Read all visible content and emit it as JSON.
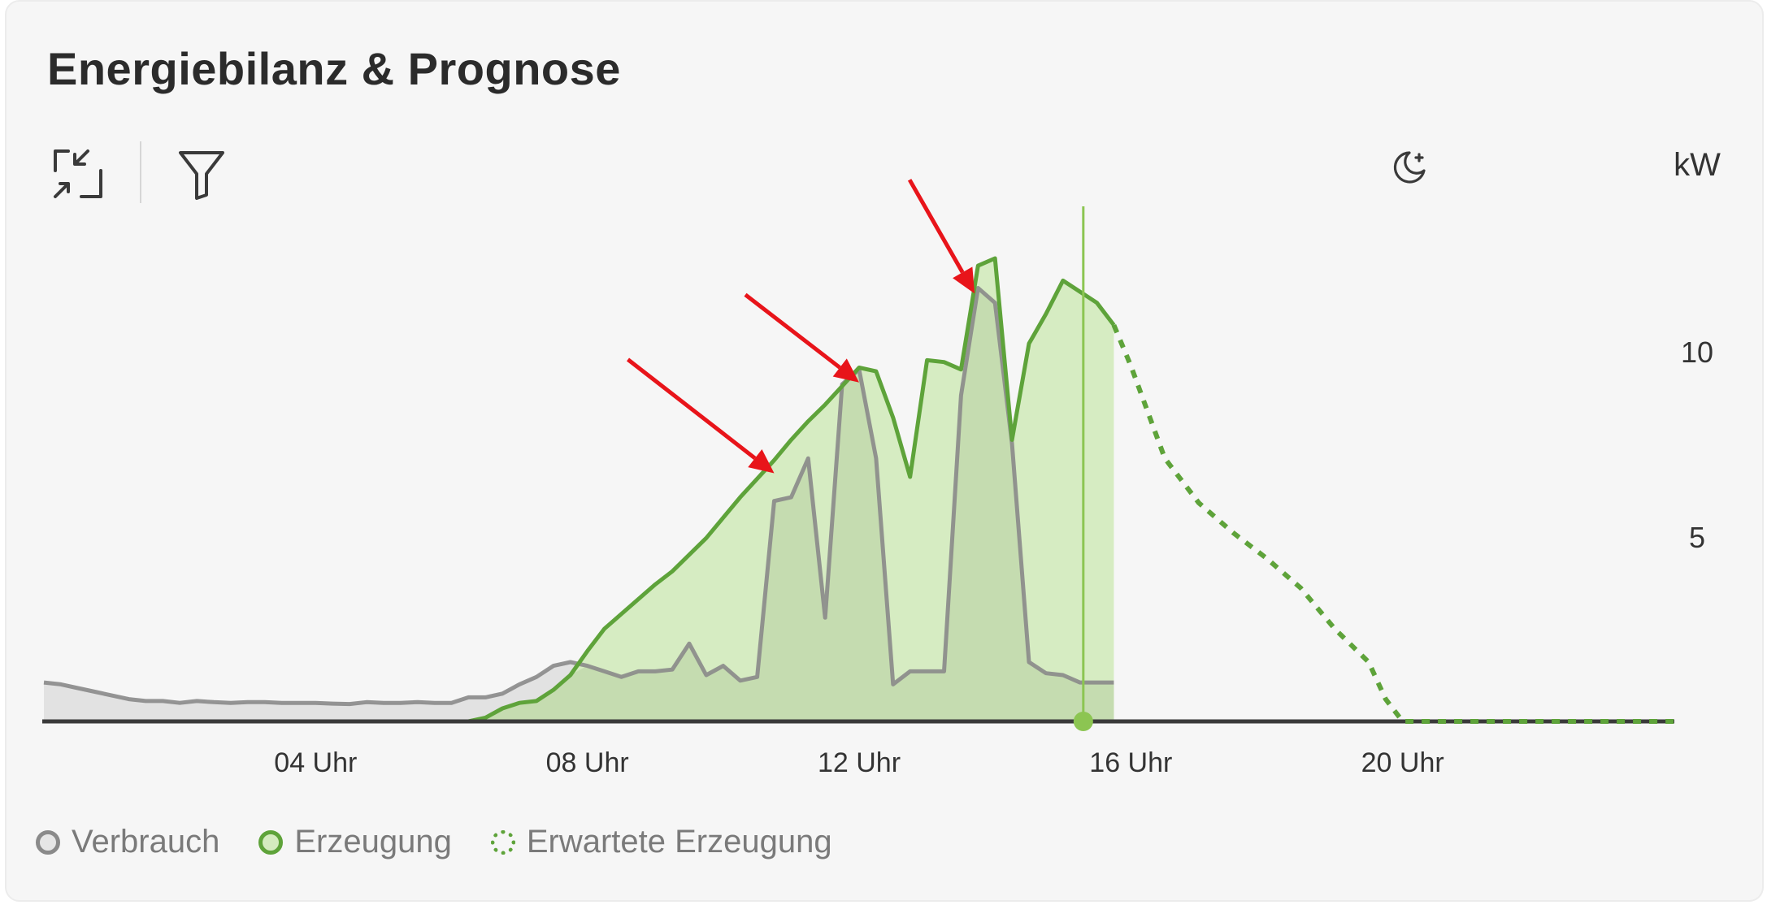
{
  "header": {
    "title": "Energiebilanz & Prognose"
  },
  "toolbar": {
    "collapse_icon": "collapse-arrows-icon",
    "filter_icon": "filter-icon",
    "night_icon": "moon-stars-icon"
  },
  "colors": {
    "verbrauch_line": "#8a8a8a",
    "verbrauch_fill": "#e2e2e2",
    "erzeugung_line": "#5ea33a",
    "erzeugung_fill": "#d4ebbf",
    "overlap_fill": "#c5dcb0",
    "now_marker": "#8cc552",
    "baseline": "#3a3a3a",
    "annotation_arrow": "#e8141a"
  },
  "chart_data": {
    "type": "area",
    "unit_label": "kW",
    "ylim": [
      0,
      14
    ],
    "yticks": [
      5,
      10
    ],
    "xlim": [
      0,
      24
    ],
    "xticks": [
      4,
      8,
      12,
      16,
      20
    ],
    "xtick_labels": [
      "04 Uhr",
      "08 Uhr",
      "12 Uhr",
      "16 Uhr",
      "20 Uhr"
    ],
    "now_hour": 15.3,
    "series": [
      {
        "name": "Verbrauch",
        "style": "filled-line",
        "points": [
          [
            0.0,
            1.05
          ],
          [
            0.25,
            1.0
          ],
          [
            0.5,
            0.9
          ],
          [
            0.75,
            0.8
          ],
          [
            1.0,
            0.7
          ],
          [
            1.25,
            0.6
          ],
          [
            1.5,
            0.55
          ],
          [
            1.75,
            0.55
          ],
          [
            2.0,
            0.5
          ],
          [
            2.25,
            0.55
          ],
          [
            2.5,
            0.52
          ],
          [
            2.75,
            0.5
          ],
          [
            3.0,
            0.52
          ],
          [
            3.25,
            0.52
          ],
          [
            3.5,
            0.5
          ],
          [
            3.75,
            0.5
          ],
          [
            4.0,
            0.5
          ],
          [
            4.25,
            0.48
          ],
          [
            4.5,
            0.47
          ],
          [
            4.75,
            0.52
          ],
          [
            5.0,
            0.5
          ],
          [
            5.25,
            0.5
          ],
          [
            5.5,
            0.52
          ],
          [
            5.75,
            0.5
          ],
          [
            6.0,
            0.5
          ],
          [
            6.25,
            0.65
          ],
          [
            6.5,
            0.65
          ],
          [
            6.75,
            0.75
          ],
          [
            7.0,
            1.0
          ],
          [
            7.25,
            1.2
          ],
          [
            7.5,
            1.5
          ],
          [
            7.75,
            1.6
          ],
          [
            8.0,
            1.5
          ],
          [
            8.25,
            1.35
          ],
          [
            8.5,
            1.2
          ],
          [
            8.75,
            1.35
          ],
          [
            9.0,
            1.35
          ],
          [
            9.25,
            1.4
          ],
          [
            9.5,
            2.1
          ],
          [
            9.75,
            1.25
          ],
          [
            10.0,
            1.5
          ],
          [
            10.25,
            1.1
          ],
          [
            10.5,
            1.2
          ],
          [
            10.75,
            5.95
          ],
          [
            11.0,
            6.05
          ],
          [
            11.25,
            7.1
          ],
          [
            11.5,
            2.8
          ],
          [
            11.75,
            9.1
          ],
          [
            12.0,
            9.5
          ],
          [
            12.25,
            7.1
          ],
          [
            12.5,
            1.0
          ],
          [
            12.75,
            1.35
          ],
          [
            13.0,
            1.35
          ],
          [
            13.25,
            1.35
          ],
          [
            13.5,
            8.8
          ],
          [
            13.75,
            11.7
          ],
          [
            14.0,
            11.3
          ],
          [
            14.25,
            7.5
          ],
          [
            14.5,
            1.6
          ],
          [
            14.75,
            1.3
          ],
          [
            15.0,
            1.25
          ],
          [
            15.25,
            1.05
          ],
          [
            15.5,
            1.05
          ],
          [
            15.75,
            1.05
          ]
        ]
      },
      {
        "name": "Erzeugung",
        "style": "filled-line",
        "points": [
          [
            0.0,
            0.0
          ],
          [
            6.25,
            0.0
          ],
          [
            6.5,
            0.1
          ],
          [
            6.75,
            0.35
          ],
          [
            7.0,
            0.5
          ],
          [
            7.25,
            0.55
          ],
          [
            7.5,
            0.85
          ],
          [
            7.75,
            1.25
          ],
          [
            8.0,
            1.9
          ],
          [
            8.25,
            2.5
          ],
          [
            8.5,
            2.9
          ],
          [
            8.75,
            3.3
          ],
          [
            9.0,
            3.7
          ],
          [
            9.25,
            4.05
          ],
          [
            9.5,
            4.5
          ],
          [
            9.75,
            4.95
          ],
          [
            10.0,
            5.5
          ],
          [
            10.25,
            6.05
          ],
          [
            10.5,
            6.55
          ],
          [
            10.75,
            7.05
          ],
          [
            11.0,
            7.6
          ],
          [
            11.25,
            8.1
          ],
          [
            11.5,
            8.55
          ],
          [
            11.75,
            9.05
          ],
          [
            12.0,
            9.55
          ],
          [
            12.25,
            9.45
          ],
          [
            12.5,
            8.2
          ],
          [
            12.75,
            6.6
          ],
          [
            13.0,
            9.75
          ],
          [
            13.25,
            9.7
          ],
          [
            13.5,
            9.5
          ],
          [
            13.75,
            12.3
          ],
          [
            14.0,
            12.5
          ],
          [
            14.25,
            7.6
          ],
          [
            14.5,
            10.2
          ],
          [
            14.75,
            11.0
          ],
          [
            15.0,
            11.9
          ],
          [
            15.25,
            11.6
          ],
          [
            15.5,
            11.3
          ],
          [
            15.75,
            10.7
          ]
        ]
      },
      {
        "name": "Erwartete Erzeugung",
        "style": "dotted-line",
        "points": [
          [
            15.75,
            10.7
          ],
          [
            16.0,
            9.6
          ],
          [
            16.5,
            7.1
          ],
          [
            17.0,
            5.9
          ],
          [
            17.5,
            5.1
          ],
          [
            18.0,
            4.4
          ],
          [
            18.5,
            3.6
          ],
          [
            19.0,
            2.5
          ],
          [
            19.5,
            1.6
          ],
          [
            19.75,
            0.6
          ],
          [
            20.0,
            0.0
          ],
          [
            24.0,
            0.0
          ]
        ]
      }
    ],
    "legend": [
      "Verbrauch",
      "Erzeugung",
      "Erwartete Erzeugung"
    ],
    "legend_position": "bottom-left",
    "annotations": [
      {
        "type": "arrow",
        "target": [
          10.75,
          6.7
        ]
      },
      {
        "type": "arrow",
        "target": [
          12.0,
          9.15
        ]
      },
      {
        "type": "arrow",
        "target": [
          13.7,
          11.55
        ]
      }
    ]
  }
}
